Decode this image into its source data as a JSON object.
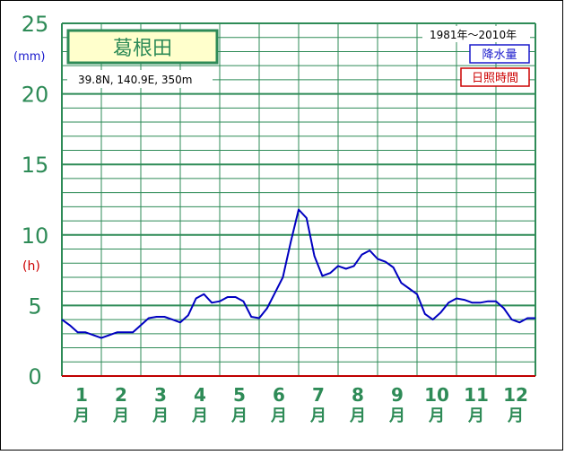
{
  "chart_data": {
    "type": "line",
    "title": "葛根田",
    "location": "39.8N, 140.9E, 350m",
    "period": "1981年〜2010年",
    "legend": [
      {
        "name": "降水量",
        "color": "#0000c0"
      },
      {
        "name": "日照時間",
        "color": "#c00000"
      }
    ],
    "y_unit_precip": "(mm)",
    "y_unit_sun": "(h)",
    "ylim": [
      0,
      25
    ],
    "y_ticks": [
      "0",
      "5",
      "10",
      "15",
      "20",
      "25"
    ],
    "month_numbers": [
      "1",
      "2",
      "3",
      "4",
      "5",
      "6",
      "7",
      "8",
      "9",
      "10",
      "11",
      "12"
    ],
    "month_suffix": "月",
    "x_range": [
      0.5,
      12.5
    ],
    "series": [
      {
        "name": "降水量",
        "color": "#0000c0",
        "x": [
          0.5,
          0.7,
          0.9,
          1.1,
          1.3,
          1.5,
          1.7,
          1.9,
          2.1,
          2.3,
          2.5,
          2.7,
          2.9,
          3.1,
          3.3,
          3.5,
          3.7,
          3.9,
          4.1,
          4.3,
          4.5,
          4.7,
          4.9,
          5.1,
          5.3,
          5.5,
          5.7,
          5.9,
          6.1,
          6.3,
          6.5,
          6.7,
          6.9,
          7.1,
          7.3,
          7.5,
          7.7,
          7.9,
          8.1,
          8.3,
          8.5,
          8.7,
          8.9,
          9.1,
          9.3,
          9.5,
          9.7,
          9.9,
          10.1,
          10.3,
          10.5,
          10.7,
          10.9,
          11.1,
          11.3,
          11.5,
          11.7,
          11.9,
          12.1,
          12.3,
          12.5
        ],
        "values": [
          4.0,
          3.6,
          3.1,
          3.1,
          2.9,
          2.7,
          2.9,
          3.1,
          3.1,
          3.1,
          3.6,
          4.1,
          4.2,
          4.2,
          4.0,
          3.8,
          4.3,
          5.5,
          5.8,
          5.2,
          5.3,
          5.6,
          5.6,
          5.3,
          4.2,
          4.1,
          4.8,
          5.9,
          7.0,
          9.5,
          11.8,
          11.2,
          8.5,
          7.1,
          7.3,
          7.8,
          7.6,
          7.8,
          8.6,
          8.9,
          8.3,
          8.1,
          7.7,
          6.6,
          6.2,
          5.8,
          4.4,
          4.0,
          4.5,
          5.2,
          5.5,
          5.4,
          5.2,
          5.2,
          5.3,
          5.3,
          4.8,
          4.0,
          3.8,
          4.1,
          4.1
        ]
      },
      {
        "name": "日照時間",
        "color": "#c00000",
        "x": [
          0.5,
          12.5
        ],
        "values": [
          0,
          0
        ]
      }
    ]
  }
}
